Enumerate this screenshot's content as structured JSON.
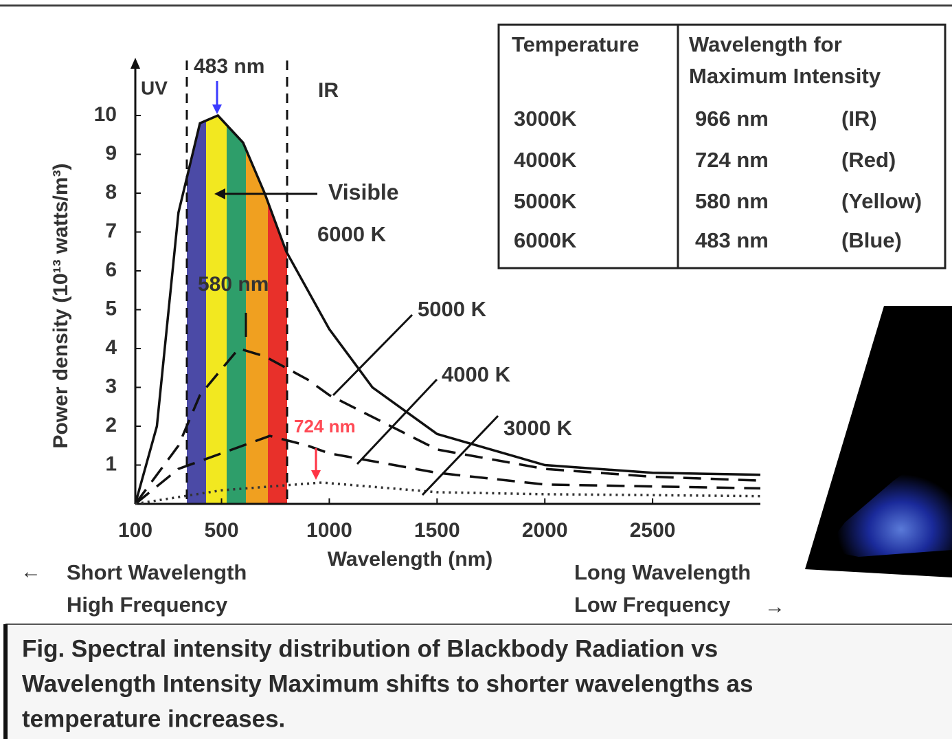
{
  "chart_data": {
    "type": "line",
    "x_label": "Wavelength (nm)",
    "y_label": "Power density (10¹³ watts/m³)",
    "xlim": [
      100,
      3000
    ],
    "ylim": [
      0,
      10
    ],
    "xticks": [
      100,
      500,
      1000,
      1500,
      2000,
      2500
    ],
    "yticks": [
      1,
      2,
      3,
      4,
      5,
      6,
      7,
      8,
      9,
      10
    ],
    "series": [
      {
        "name": "6000 K",
        "color": "#111111",
        "style": "solid",
        "x": [
          100,
          200,
          300,
          400,
          483,
          600,
          700,
          800,
          1000,
          1200,
          1500,
          2000,
          2500,
          3000
        ],
        "values": [
          0,
          2,
          7.5,
          9.8,
          10,
          9.3,
          8,
          6.5,
          4.5,
          3,
          1.8,
          1,
          0.8,
          0.75
        ]
      },
      {
        "name": "5000 K",
        "color": "#111111",
        "style": "dashed",
        "x": [
          100,
          300,
          400,
          580,
          700,
          900,
          1000,
          1500,
          2000,
          2500,
          3000
        ],
        "values": [
          0,
          1.5,
          2.8,
          4,
          3.8,
          3.2,
          2.8,
          1.4,
          0.9,
          0.7,
          0.6
        ]
      },
      {
        "name": "4000 K",
        "color": "#111111",
        "style": "dashed",
        "x": [
          100,
          300,
          500,
          724,
          900,
          1000,
          1500,
          2000,
          2500,
          3000
        ],
        "values": [
          0,
          0.9,
          1.3,
          1.75,
          1.5,
          1.3,
          0.8,
          0.5,
          0.45,
          0.4
        ]
      },
      {
        "name": "3000 K",
        "color": "#333333",
        "style": "dotted",
        "x": [
          100,
          500,
          966,
          1500,
          2000,
          3000
        ],
        "values": [
          0,
          0.35,
          0.55,
          0.3,
          0.25,
          0.2
        ]
      }
    ],
    "annotations": [
      "UV",
      "IR",
      "Visible",
      "483 nm",
      "580 nm",
      "724 nm"
    ],
    "direction_labels": [
      "Short Wavelength",
      "High Frequency",
      "Long Wavelength",
      "Low Frequency"
    ],
    "table": {
      "temperature_header": "Temperature",
      "wavelength_header": [
        "Wavelength for",
        "Maximum Intensity"
      ],
      "rows": [
        [
          "3000K",
          "966 nm",
          "(IR)"
        ],
        [
          "4000K",
          "724 nm",
          "(Red)"
        ],
        [
          "5000K",
          "580 nm",
          "(Yellow)"
        ],
        [
          "6000K",
          "483 nm",
          "(Blue)"
        ]
      ]
    },
    "caption": [
      "Fig. Spectral intensity distribution of Blackbody Radiation vs",
      "Wavelength Intensity Maximum shifts to shorter wavelengths as",
      "temperature increases."
    ]
  }
}
